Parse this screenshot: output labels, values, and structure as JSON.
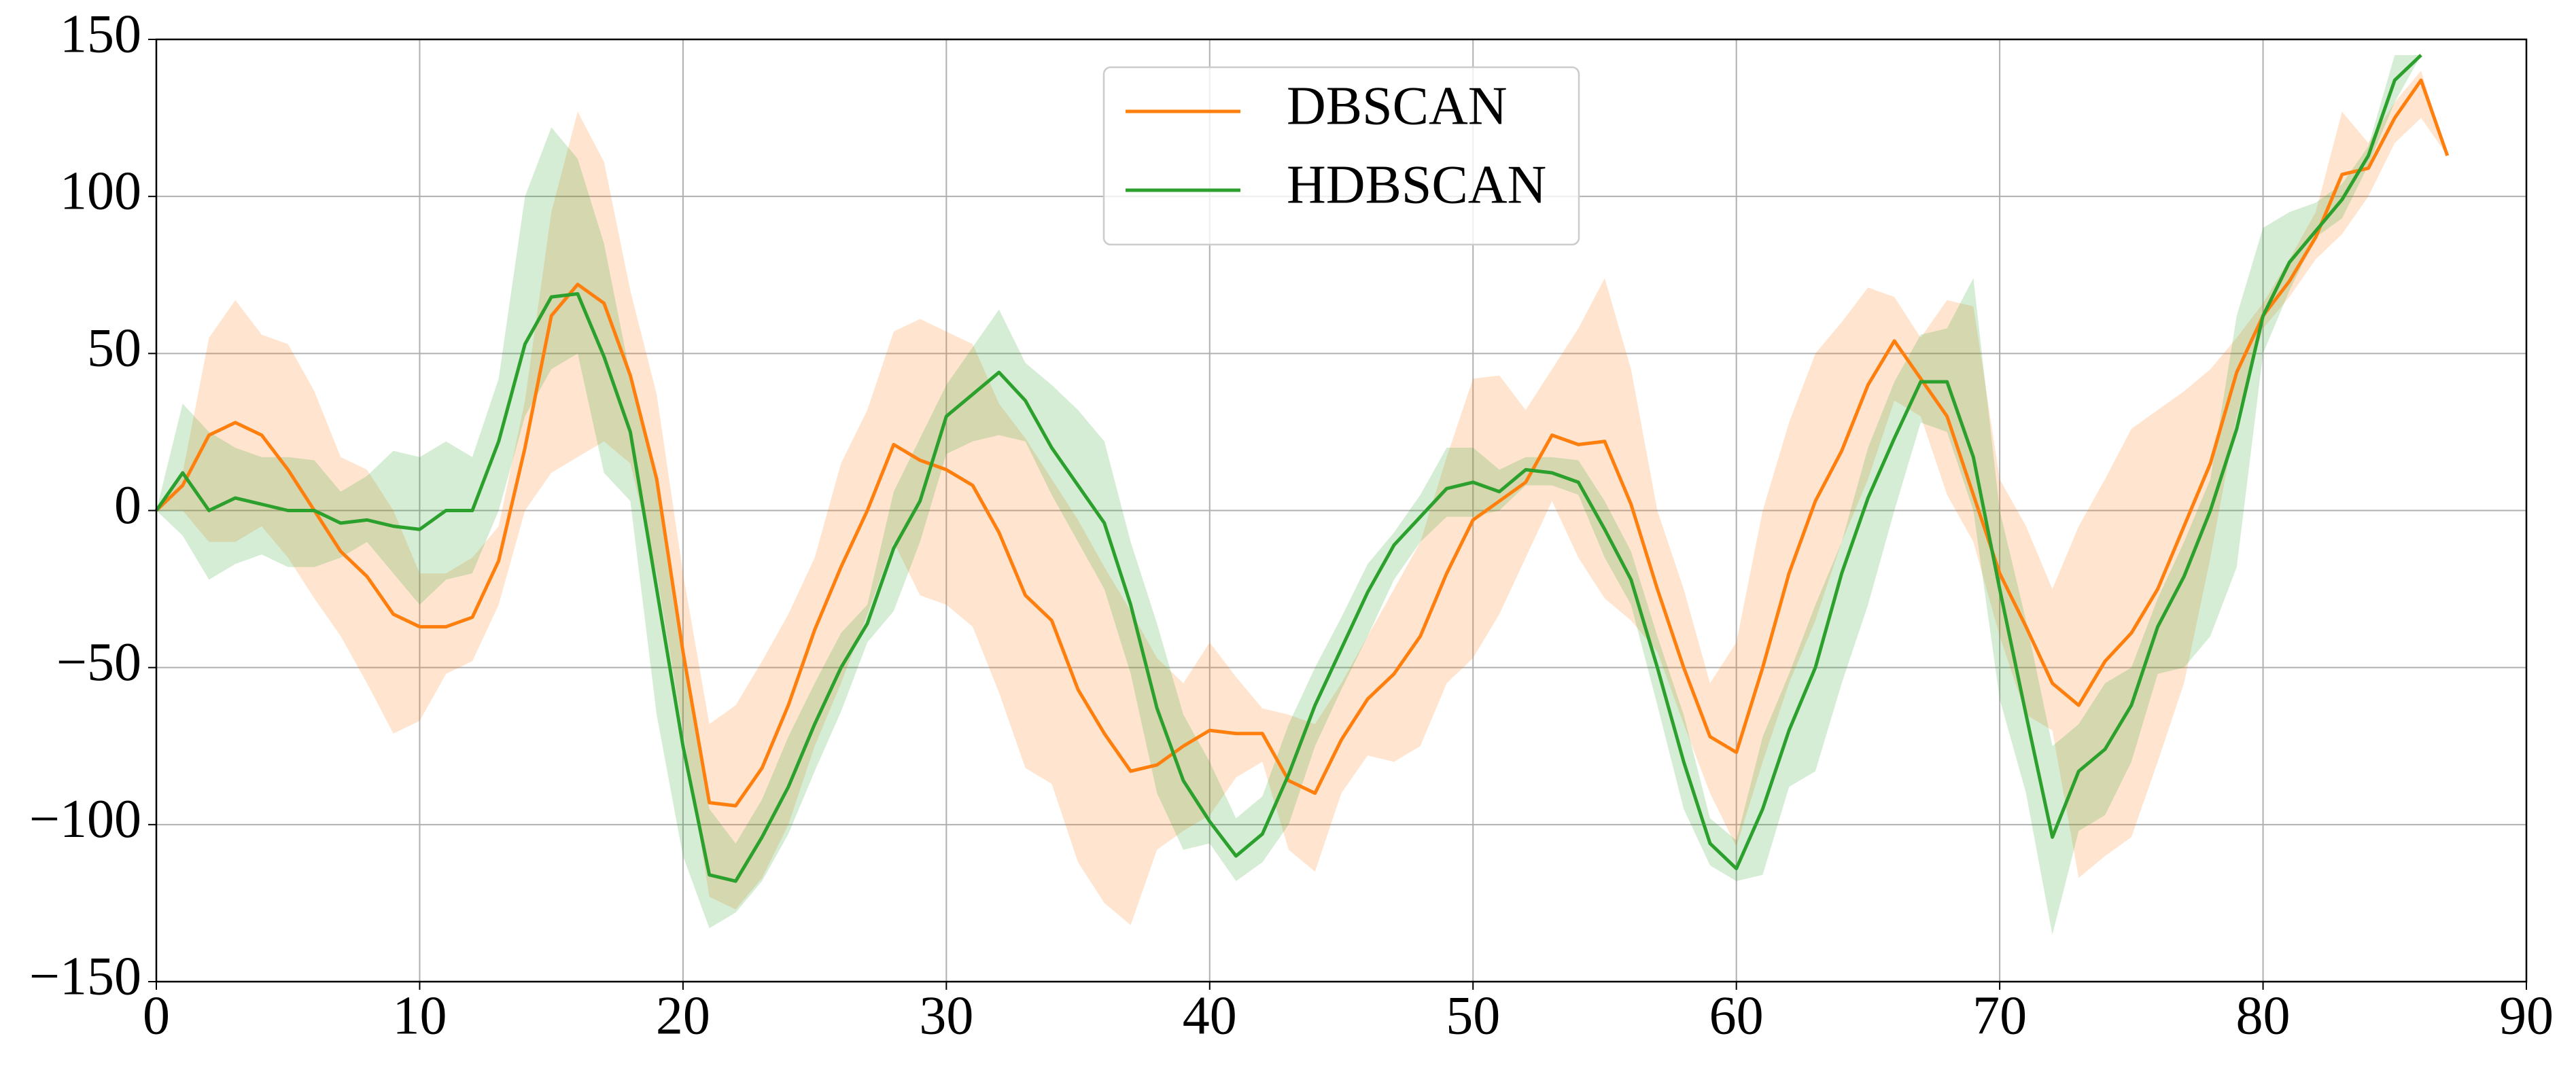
{
  "chart_data": {
    "type": "line",
    "grid": true,
    "legend": "upper center",
    "xlim": [
      0,
      90
    ],
    "xticks": [
      0,
      10,
      20,
      30,
      40,
      50,
      60,
      70,
      80,
      90
    ],
    "ylim": [
      -150,
      150
    ],
    "yticks": [
      {
        "value": -150,
        "label": "−150"
      },
      {
        "value": -100,
        "label": "−100"
      },
      {
        "value": -50,
        "label": "−50"
      },
      0,
      50,
      100,
      150
    ],
    "series": [
      {
        "name": "DBSCAN",
        "color": "#ff7f0e",
        "x": [
          0,
          1,
          2,
          3,
          4,
          5,
          6,
          7,
          8,
          9,
          10,
          11,
          12,
          13,
          14,
          15,
          16,
          17,
          18,
          19,
          20,
          21,
          22,
          23,
          24,
          25,
          26,
          27,
          28,
          29,
          30,
          31,
          32,
          33,
          34,
          35,
          36,
          37,
          38,
          39,
          40,
          41,
          42,
          43,
          44,
          45,
          46,
          47,
          48,
          49,
          50,
          51,
          52,
          53,
          54,
          55,
          56,
          57,
          58,
          59,
          60,
          61,
          62,
          63,
          64,
          65,
          66,
          67,
          68,
          69,
          70,
          71,
          72,
          73,
          74,
          75,
          76,
          77,
          78,
          79,
          80,
          81,
          82,
          83,
          84,
          85,
          86,
          87
        ],
        "values": [
          0,
          8,
          24,
          28,
          24,
          13,
          0,
          -13,
          -21,
          -33,
          -37,
          -37,
          -34,
          -16,
          20,
          62,
          72,
          66,
          43,
          10,
          -45,
          -93,
          -94,
          -82,
          -62,
          -38,
          -18,
          0,
          21,
          16,
          13,
          8,
          -7,
          -27,
          -35,
          -57,
          -71,
          -83,
          -81,
          -75,
          -70,
          -71,
          -71,
          -86,
          -90,
          -73,
          -60,
          -52,
          -40,
          -20,
          -3,
          3,
          9,
          24,
          21,
          22,
          2,
          -25,
          -50,
          -72,
          -77,
          -50,
          -20,
          3,
          19,
          40,
          54,
          42,
          30,
          5,
          -20,
          -37,
          -55,
          -62,
          -48,
          -39,
          -25,
          -5,
          15,
          44,
          62,
          73,
          87,
          107,
          109,
          125,
          137,
          113
        ],
        "lower": [
          0,
          0,
          -10,
          -10,
          -5,
          -15,
          -28,
          -40,
          -55,
          -71,
          -67,
          -52,
          -48,
          -30,
          0,
          12,
          17,
          22,
          15,
          -20,
          -70,
          -123,
          -127,
          -117,
          -100,
          -75,
          -55,
          -33,
          -10,
          -27,
          -30,
          -37,
          -58,
          -82,
          -87,
          -112,
          -125,
          -132,
          -108,
          -102,
          -97,
          -85,
          -80,
          -108,
          -115,
          -90,
          -78,
          -80,
          -75,
          -55,
          -47,
          -33,
          -15,
          3,
          -15,
          -28,
          -35,
          -45,
          -68,
          -90,
          -107,
          -80,
          -55,
          -35,
          -10,
          10,
          35,
          30,
          5,
          -10,
          -40,
          -65,
          -70,
          -117,
          -110,
          -104,
          -80,
          -55,
          -15,
          30,
          58,
          68,
          80,
          88,
          100,
          117,
          125,
          113
        ],
        "upper": [
          0,
          12,
          55,
          67,
          56,
          53,
          38,
          17,
          13,
          0,
          -20,
          -20,
          -15,
          -5,
          35,
          95,
          127,
          111,
          70,
          37,
          -20,
          -68,
          -62,
          -48,
          -33,
          -15,
          15,
          32,
          57,
          61,
          57,
          53,
          34,
          23,
          10,
          -3,
          -18,
          -32,
          -47,
          -55,
          -42,
          -53,
          -63,
          -65,
          -68,
          -55,
          -40,
          -25,
          -10,
          17,
          42,
          43,
          32,
          45,
          58,
          74,
          45,
          0,
          -25,
          -55,
          -42,
          0,
          28,
          50,
          60,
          71,
          68,
          55,
          67,
          65,
          10,
          -5,
          -25,
          -5,
          10,
          26,
          32,
          38,
          45,
          55,
          66,
          80,
          95,
          127,
          117,
          130,
          140,
          113
        ]
      },
      {
        "name": "HDBSCAN",
        "color": "#2ca02c",
        "x": [
          0,
          1,
          2,
          3,
          4,
          5,
          6,
          7,
          8,
          9,
          10,
          11,
          12,
          13,
          14,
          15,
          16,
          17,
          18,
          19,
          20,
          21,
          22,
          23,
          24,
          25,
          26,
          27,
          28,
          29,
          30,
          31,
          32,
          33,
          34,
          35,
          36,
          37,
          38,
          39,
          40,
          41,
          42,
          43,
          44,
          45,
          46,
          47,
          48,
          49,
          50,
          51,
          52,
          53,
          54,
          55,
          56,
          57,
          58,
          59,
          60,
          61,
          62,
          63,
          64,
          65,
          66,
          67,
          68,
          69,
          70,
          71,
          72,
          73,
          74,
          75,
          76,
          77,
          78,
          79,
          80,
          81,
          82,
          83,
          84,
          85,
          86
        ],
        "values": [
          0,
          12,
          0,
          4,
          2,
          0,
          0,
          -4,
          -3,
          -5,
          -6,
          0,
          0,
          22,
          53,
          68,
          69,
          49,
          25,
          -25,
          -75,
          -116,
          -118,
          -104,
          -88,
          -68,
          -50,
          -36,
          -12,
          3,
          30,
          37,
          44,
          35,
          20,
          8,
          -4,
          -30,
          -63,
          -86,
          -99,
          -110,
          -103,
          -84,
          -62,
          -44,
          -26,
          -11,
          -2,
          7,
          9,
          6,
          13,
          12,
          9,
          -6,
          -22,
          -50,
          -80,
          -106,
          -114,
          -95,
          -70,
          -50,
          -20,
          4,
          23,
          41,
          41,
          17,
          -25,
          -65,
          -104,
          -83,
          -76,
          -62,
          -37,
          -21,
          0,
          26,
          62,
          79,
          89,
          99,
          113,
          137,
          145
        ],
        "lower": [
          0,
          -8,
          -22,
          -17,
          -14,
          -18,
          -18,
          -15,
          -10,
          -20,
          -30,
          -22,
          -20,
          0,
          30,
          45,
          50,
          12,
          3,
          -65,
          -110,
          -133,
          -128,
          -118,
          -103,
          -83,
          -64,
          -42,
          -32,
          -10,
          18,
          22,
          24,
          22,
          5,
          -10,
          -25,
          -52,
          -90,
          -108,
          -106,
          -118,
          -112,
          -100,
          -75,
          -57,
          -40,
          -22,
          -10,
          -2,
          -2,
          0,
          8,
          8,
          5,
          -15,
          -30,
          -62,
          -95,
          -113,
          -118,
          -116,
          -88,
          -83,
          -55,
          -30,
          0,
          28,
          25,
          0,
          -60,
          -90,
          -135,
          -102,
          -97,
          -80,
          -52,
          -50,
          -40,
          -18,
          50,
          70,
          87,
          93,
          110,
          130,
          145
        ],
        "upper": [
          0,
          34,
          25,
          20,
          17,
          17,
          16,
          6,
          11,
          19,
          17,
          22,
          17,
          42,
          100,
          122,
          112,
          85,
          43,
          10,
          -45,
          -95,
          -106,
          -92,
          -72,
          -55,
          -39,
          -30,
          6,
          23,
          40,
          52,
          64,
          47,
          40,
          32,
          22,
          -10,
          -36,
          -65,
          -80,
          -98,
          -91,
          -68,
          -50,
          -34,
          -17,
          -7,
          5,
          20,
          20,
          13,
          17,
          17,
          16,
          3,
          -13,
          -40,
          -65,
          -98,
          -105,
          -72,
          -52,
          -30,
          -10,
          20,
          41,
          56,
          58,
          74,
          0,
          -35,
          -75,
          -68,
          -55,
          -50,
          -28,
          -10,
          10,
          62,
          90,
          95,
          98,
          104,
          116,
          145,
          145
        ]
      }
    ]
  }
}
